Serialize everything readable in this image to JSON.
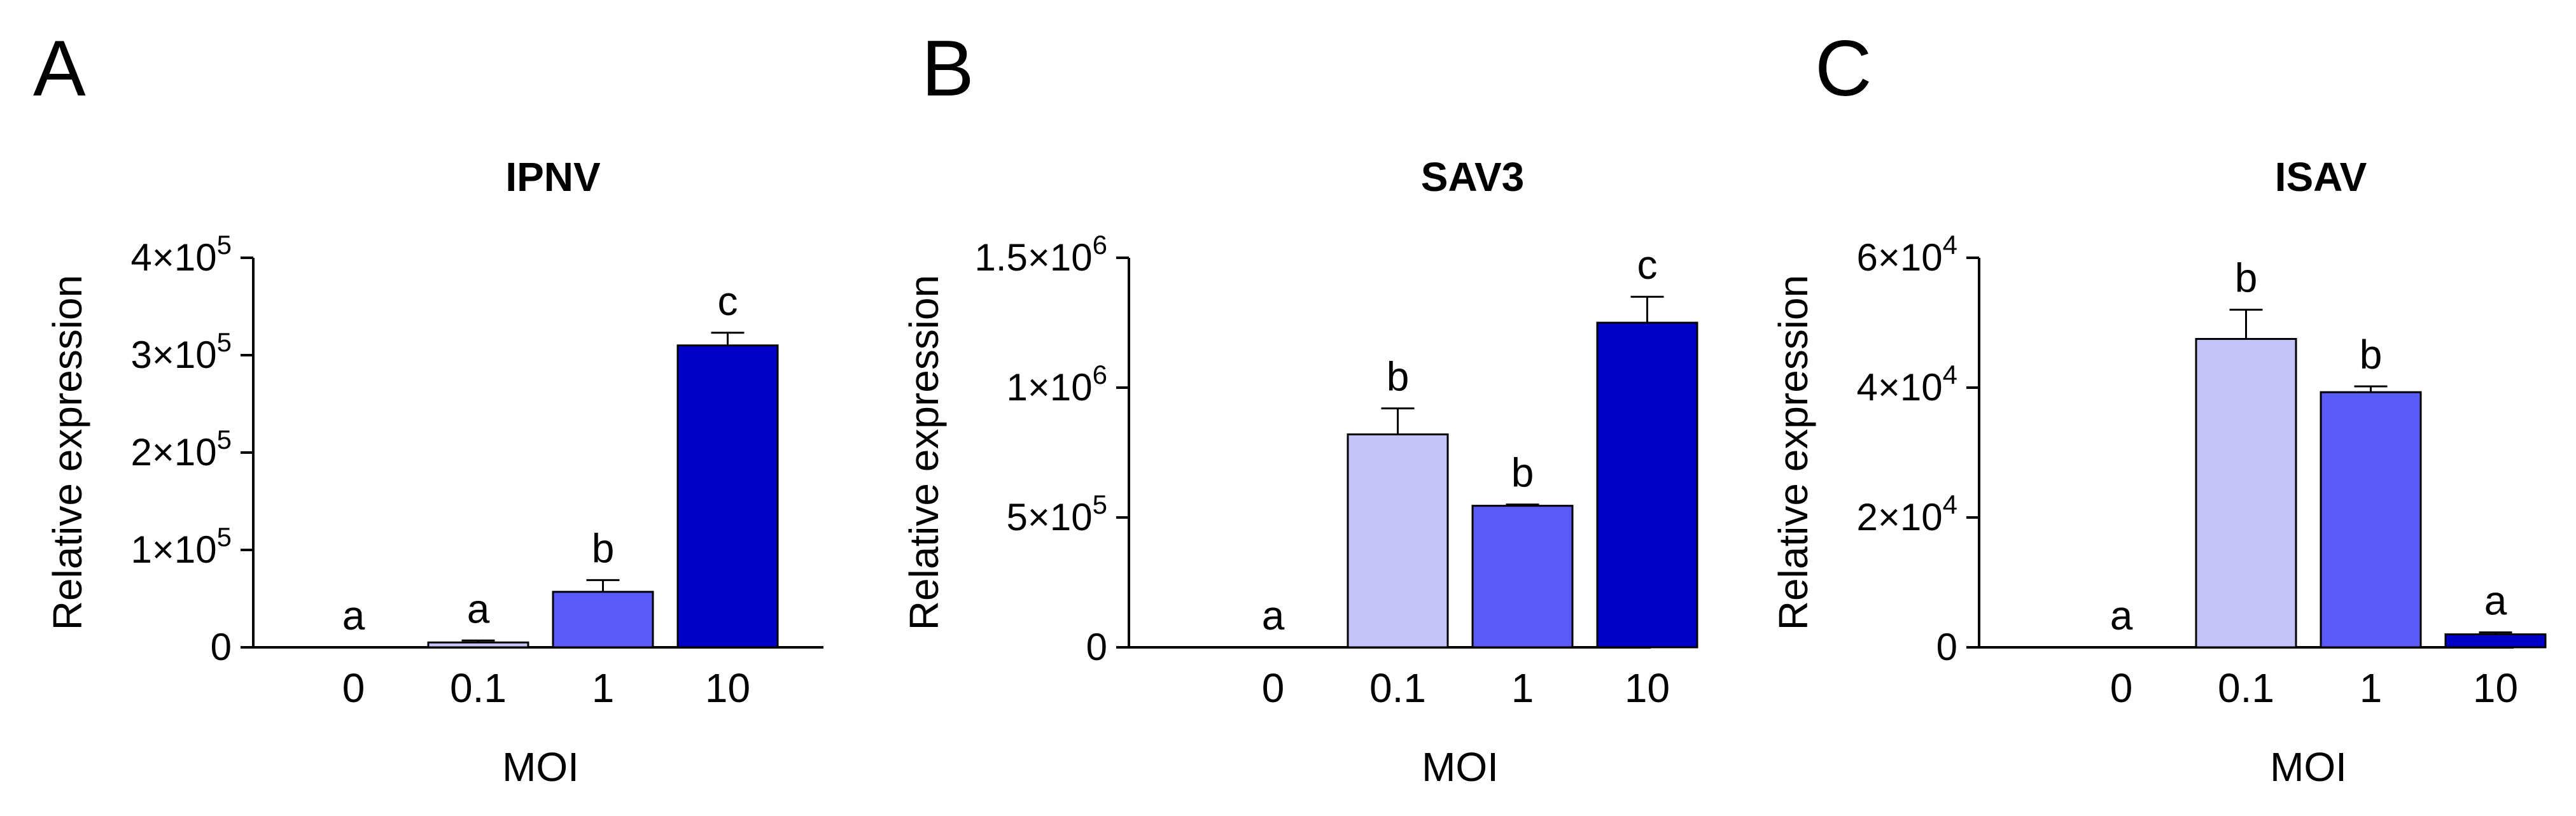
{
  "figure": {
    "panels": [
      "A",
      "B",
      "C"
    ]
  },
  "colors": {
    "axis": "#000000",
    "bar_outline": "#000000",
    "moi_0": "#e0e0f8",
    "moi_0_1": "#c4c4fb",
    "moi_1": "#5a5af7",
    "moi_10": "#0000c8"
  },
  "chart_data": [
    {
      "panel_label": "A",
      "type": "bar",
      "title": "IPNV",
      "xlabel": "MOI",
      "ylabel": "Relative expression",
      "categories": [
        "0",
        "0.1",
        "1",
        "10"
      ],
      "values": [
        0,
        5000,
        57000,
        310000
      ],
      "errors": [
        0,
        2000,
        12000,
        13000
      ],
      "significance": [
        "a",
        "a",
        "b",
        "c"
      ],
      "ylim": [
        0,
        400000
      ],
      "yticks": [
        {
          "value": 0,
          "mantissa": "0",
          "exponent": ""
        },
        {
          "value": 100000,
          "mantissa": "1×10",
          "exponent": "5"
        },
        {
          "value": 200000,
          "mantissa": "2×10",
          "exponent": "5"
        },
        {
          "value": 300000,
          "mantissa": "3×10",
          "exponent": "5"
        },
        {
          "value": 400000,
          "mantissa": "4×10",
          "exponent": "5"
        }
      ]
    },
    {
      "panel_label": "B",
      "type": "bar",
      "title": "SAV3",
      "xlabel": "MOI",
      "ylabel": "Relative expression",
      "categories": [
        "0",
        "0.1",
        "1",
        "10"
      ],
      "values": [
        0,
        820000,
        545000,
        1250000
      ],
      "errors": [
        0,
        100000,
        5000,
        100000
      ],
      "significance": [
        "a",
        "b",
        "b",
        "c"
      ],
      "ylim": [
        0,
        1500000
      ],
      "yticks": [
        {
          "value": 0,
          "mantissa": "0",
          "exponent": ""
        },
        {
          "value": 500000,
          "mantissa": "5×10",
          "exponent": "5"
        },
        {
          "value": 1000000,
          "mantissa": "1×10",
          "exponent": "6"
        },
        {
          "value": 1500000,
          "mantissa": "1.5×10",
          "exponent": "6"
        }
      ]
    },
    {
      "panel_label": "C",
      "type": "bar",
      "title": "ISAV",
      "xlabel": "MOI",
      "ylabel": "Relative expression",
      "categories": [
        "0",
        "0.1",
        "1",
        "10"
      ],
      "values": [
        0,
        47500,
        39300,
        2000
      ],
      "errors": [
        0,
        4500,
        900,
        300
      ],
      "significance": [
        "a",
        "b",
        "b",
        "a"
      ],
      "ylim": [
        0,
        60000
      ],
      "yticks": [
        {
          "value": 0,
          "mantissa": "0",
          "exponent": ""
        },
        {
          "value": 20000,
          "mantissa": "2×10",
          "exponent": "4"
        },
        {
          "value": 40000,
          "mantissa": "4×10",
          "exponent": "4"
        },
        {
          "value": 60000,
          "mantissa": "6×10",
          "exponent": "4"
        }
      ]
    }
  ]
}
